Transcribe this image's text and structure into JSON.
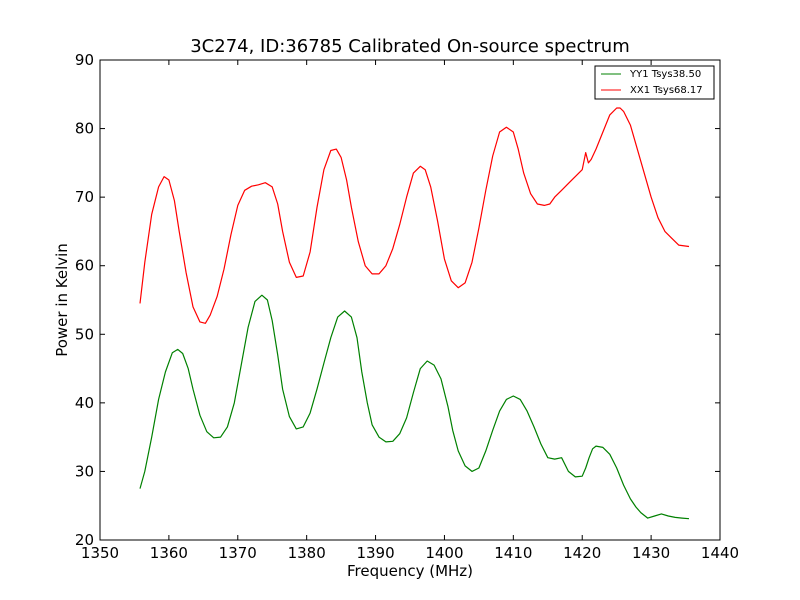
{
  "chart_data": {
    "type": "line",
    "title": "3C274, ID:36785 Calibrated On-source spectrum",
    "xlabel": "Frequency (MHz)",
    "ylabel": "Power in Kelvin",
    "xlim": [
      1350,
      1440
    ],
    "ylim": [
      20,
      90
    ],
    "xticks": [
      1350,
      1360,
      1370,
      1380,
      1390,
      1400,
      1410,
      1420,
      1430,
      1440
    ],
    "yticks": [
      20,
      30,
      40,
      50,
      60,
      70,
      80,
      90
    ],
    "grid": false,
    "legend_position": "top-right",
    "series": [
      {
        "name": "YY1 Tsys38.50",
        "color": "#008000",
        "x": [
          1355.8,
          1356.5,
          1357.5,
          1358.5,
          1359.5,
          1360.5,
          1361.3,
          1362.0,
          1362.8,
          1363.5,
          1364.5,
          1365.5,
          1366.5,
          1367.5,
          1368.5,
          1369.5,
          1370.5,
          1371.5,
          1372.5,
          1373.5,
          1374.3,
          1375.0,
          1375.8,
          1376.5,
          1377.5,
          1378.5,
          1379.5,
          1380.5,
          1381.5,
          1382.5,
          1383.5,
          1384.5,
          1385.5,
          1386.5,
          1387.3,
          1388.0,
          1388.8,
          1389.5,
          1390.5,
          1391.5,
          1392.5,
          1393.5,
          1394.5,
          1395.5,
          1396.5,
          1397.5,
          1398.5,
          1399.5,
          1400.5,
          1401.2,
          1402.0,
          1403.0,
          1404.0,
          1405.0,
          1406.0,
          1407.0,
          1408.0,
          1409.0,
          1410.0,
          1411.0,
          1412.0,
          1413.0,
          1414.0,
          1415.0,
          1416.0,
          1417.0,
          1418.0,
          1419.0,
          1420.0,
          1420.5,
          1421.0,
          1421.5,
          1422.0,
          1423.0,
          1424.0,
          1425.0,
          1426.0,
          1427.0,
          1427.8,
          1428.5,
          1429.5,
          1430.5,
          1431.5,
          1432.5,
          1433.5,
          1434.5,
          1435.5
        ],
        "values": [
          27.5,
          30.0,
          35.0,
          40.5,
          44.5,
          47.3,
          47.8,
          47.2,
          45.0,
          42.0,
          38.2,
          35.8,
          34.9,
          35.0,
          36.5,
          40.0,
          45.5,
          51.0,
          54.8,
          55.7,
          55.0,
          52.0,
          47.0,
          42.0,
          38.0,
          36.2,
          36.5,
          38.5,
          42.0,
          45.8,
          49.5,
          52.5,
          53.4,
          52.5,
          49.5,
          44.5,
          40.0,
          36.8,
          35.0,
          34.3,
          34.4,
          35.5,
          37.8,
          41.5,
          45.0,
          46.1,
          45.5,
          43.5,
          39.5,
          36.0,
          33.0,
          30.8,
          30.0,
          30.5,
          33.0,
          36.0,
          38.8,
          40.5,
          41.0,
          40.5,
          38.8,
          36.5,
          34.0,
          32.0,
          31.8,
          32.0,
          30.0,
          29.2,
          29.3,
          30.5,
          32.0,
          33.3,
          33.7,
          33.5,
          32.5,
          30.5,
          28.0,
          26.0,
          24.8,
          24.0,
          23.2,
          23.5,
          23.8,
          23.5,
          23.3,
          23.2,
          23.1
        ]
      },
      {
        "name": "XX1 Tsys68.17",
        "color": "#ff0000",
        "x": [
          1355.8,
          1356.5,
          1357.5,
          1358.5,
          1359.3,
          1360.0,
          1360.8,
          1361.5,
          1362.5,
          1363.5,
          1364.5,
          1365.3,
          1366.0,
          1367.0,
          1368.0,
          1369.0,
          1370.0,
          1371.0,
          1372.0,
          1373.0,
          1374.0,
          1375.0,
          1375.8,
          1376.5,
          1377.5,
          1378.5,
          1379.5,
          1380.5,
          1381.5,
          1382.5,
          1383.5,
          1384.3,
          1385.0,
          1385.8,
          1386.5,
          1387.5,
          1388.5,
          1389.5,
          1390.5,
          1391.5,
          1392.5,
          1393.5,
          1394.5,
          1395.5,
          1396.5,
          1397.2,
          1398.0,
          1399.0,
          1400.0,
          1401.0,
          1402.0,
          1403.0,
          1404.0,
          1405.0,
          1406.0,
          1407.0,
          1408.0,
          1409.0,
          1410.0,
          1410.7,
          1411.5,
          1412.5,
          1413.5,
          1414.5,
          1415.3,
          1416.0,
          1417.0,
          1418.0,
          1419.0,
          1420.0,
          1420.5,
          1420.9,
          1421.3,
          1422.0,
          1423.0,
          1424.0,
          1425.0,
          1425.5,
          1426.0,
          1427.0,
          1428.0,
          1429.0,
          1430.0,
          1431.0,
          1432.0,
          1433.0,
          1434.0,
          1435.5
        ],
        "values": [
          54.5,
          60.5,
          67.5,
          71.5,
          73.0,
          72.5,
          69.5,
          65.0,
          59.0,
          54.0,
          51.8,
          51.6,
          52.8,
          55.5,
          59.5,
          64.5,
          68.8,
          71.0,
          71.6,
          71.8,
          72.1,
          71.5,
          69.0,
          65.0,
          60.5,
          58.3,
          58.5,
          62.0,
          68.5,
          74.0,
          76.8,
          77.0,
          75.8,
          72.5,
          68.5,
          63.5,
          60.0,
          58.8,
          58.8,
          60.0,
          62.5,
          66.0,
          70.0,
          73.5,
          74.5,
          74.0,
          71.5,
          66.5,
          61.0,
          57.8,
          56.8,
          57.5,
          60.5,
          65.5,
          71.0,
          76.0,
          79.5,
          80.2,
          79.5,
          77.0,
          73.5,
          70.5,
          69.0,
          68.8,
          69.0,
          70.0,
          71.0,
          72.0,
          73.0,
          74.0,
          76.5,
          75.0,
          75.5,
          77.0,
          79.5,
          82.0,
          83.0,
          83.0,
          82.5,
          80.5,
          77.0,
          73.5,
          70.0,
          67.0,
          65.0,
          64.0,
          63.0,
          62.8
        ]
      }
    ]
  }
}
